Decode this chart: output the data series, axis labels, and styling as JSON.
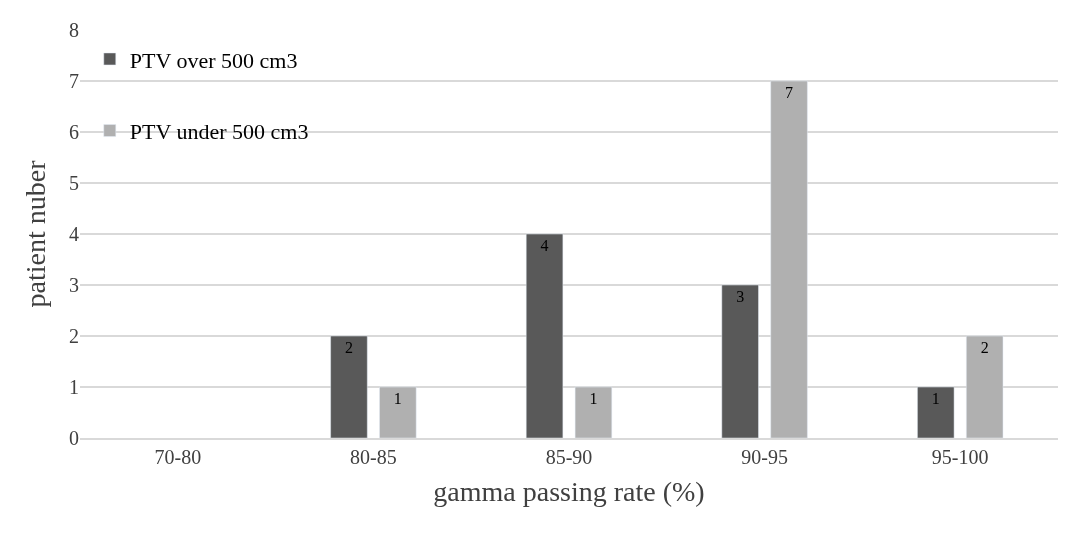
{
  "chart_data": {
    "type": "bar",
    "xlabel": "gamma passing rate (%)",
    "ylabel": "patient nuber",
    "categories": [
      "70-80",
      "80-85",
      "85-90",
      "90-95",
      "95-100"
    ],
    "series": [
      {
        "name": "PTV over 500 cm3",
        "color": "#595959",
        "values": [
          null,
          2,
          4,
          3,
          1
        ],
        "value_labels": [
          null,
          "2",
          "4",
          "3",
          "1"
        ]
      },
      {
        "name": "PTV under 500 cm3",
        "color": "#b0b0b0",
        "values": [
          null,
          1,
          1,
          7,
          2
        ],
        "value_labels": [
          null,
          "1",
          "1",
          "7",
          "2"
        ]
      }
    ],
    "ylim": [
      0,
      8
    ],
    "yticks": [
      0,
      1,
      2,
      3,
      4,
      5,
      6,
      7,
      8
    ],
    "grid": "y",
    "legend": "top left"
  }
}
